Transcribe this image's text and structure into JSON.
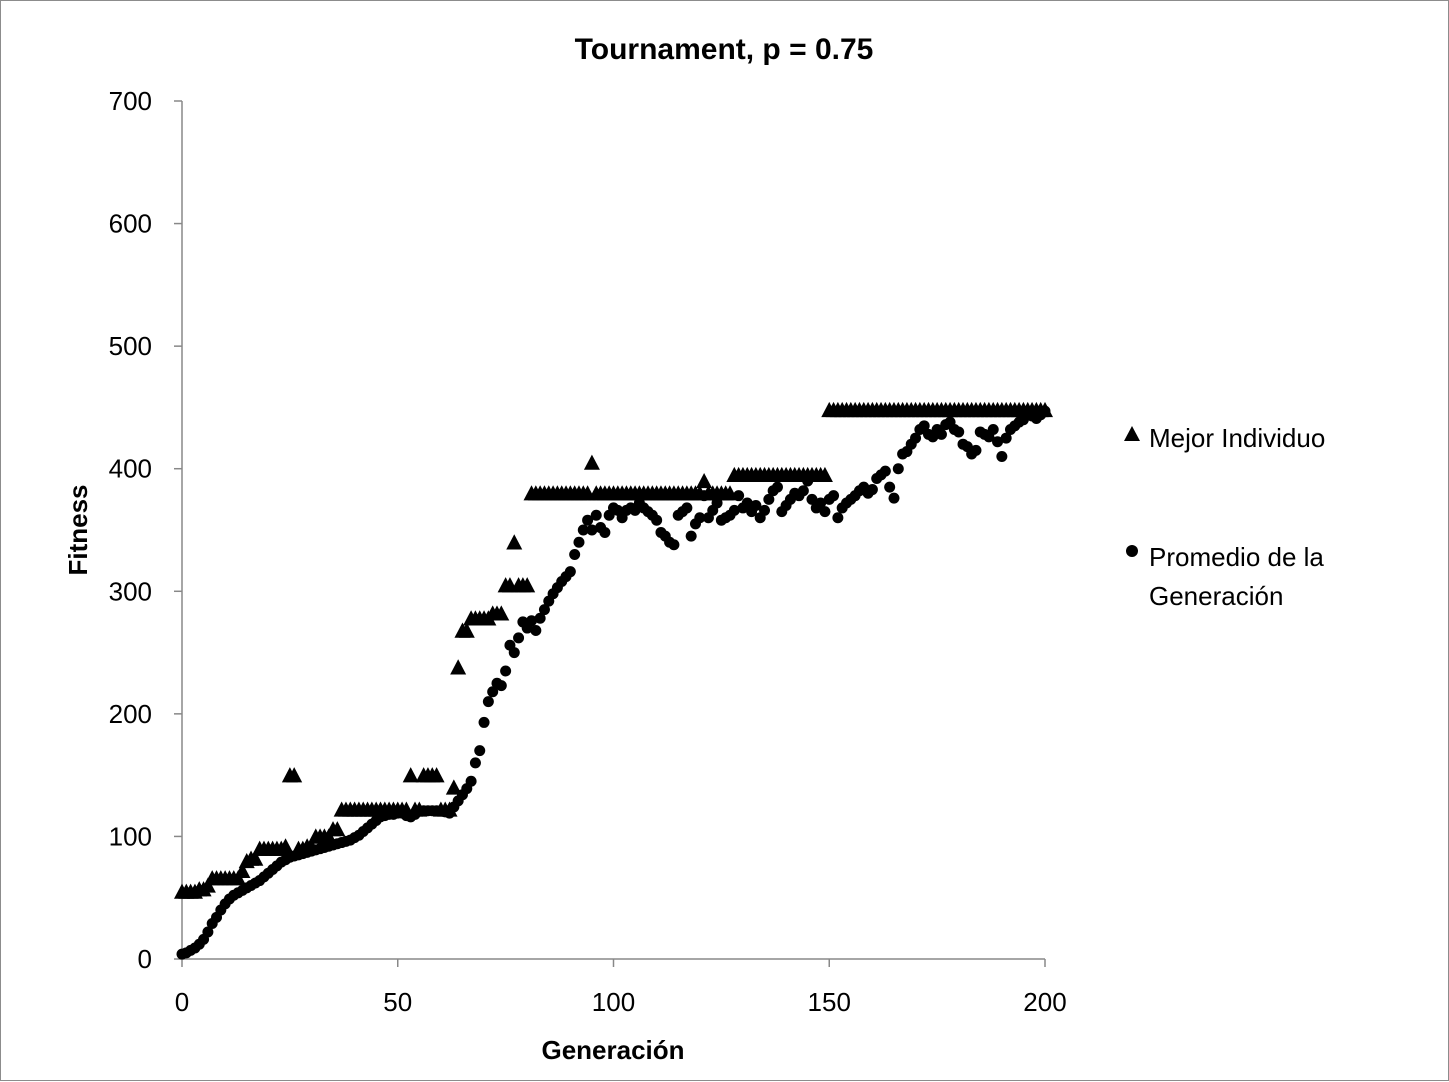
{
  "chart_data": {
    "type": "scatter",
    "title": "Tournament, p = 0.75",
    "xlabel": "Generación",
    "ylabel": "Fitness",
    "xlim": [
      0,
      200
    ],
    "ylim": [
      0,
      700
    ],
    "xticks": [
      0,
      50,
      100,
      150,
      200
    ],
    "yticks": [
      0,
      100,
      200,
      300,
      400,
      500,
      600,
      700
    ],
    "grid": false,
    "legend": "right",
    "series": [
      {
        "name": "Mejor Individuo",
        "marker": "triangle",
        "color": "#000000",
        "x": [
          0,
          1,
          2,
          3,
          4,
          5,
          6,
          7,
          8,
          9,
          10,
          11,
          12,
          13,
          14,
          15,
          16,
          17,
          18,
          19,
          20,
          21,
          22,
          23,
          24,
          25,
          26,
          27,
          28,
          29,
          30,
          31,
          32,
          33,
          34,
          35,
          36,
          37,
          38,
          39,
          40,
          41,
          42,
          43,
          44,
          45,
          46,
          47,
          48,
          49,
          50,
          51,
          52,
          53,
          54,
          55,
          56,
          57,
          58,
          59,
          60,
          61,
          62,
          63,
          64,
          65,
          66,
          67,
          68,
          69,
          70,
          71,
          72,
          73,
          74,
          75,
          76,
          77,
          78,
          79,
          80,
          81,
          82,
          83,
          84,
          85,
          86,
          87,
          88,
          89,
          90,
          91,
          92,
          93,
          94,
          95,
          96,
          97,
          98,
          99,
          100,
          101,
          102,
          103,
          104,
          105,
          106,
          107,
          108,
          109,
          110,
          111,
          112,
          113,
          114,
          115,
          116,
          117,
          118,
          119,
          120,
          121,
          122,
          123,
          124,
          125,
          126,
          127,
          128,
          129,
          130,
          131,
          132,
          133,
          134,
          135,
          136,
          137,
          138,
          139,
          140,
          141,
          142,
          143,
          144,
          145,
          146,
          147,
          148,
          149,
          150,
          151,
          152,
          153,
          154,
          155,
          156,
          157,
          158,
          159,
          160,
          161,
          162,
          163,
          164,
          165,
          166,
          167,
          168,
          169,
          170,
          171,
          172,
          173,
          174,
          175,
          176,
          177,
          178,
          179,
          180,
          181,
          182,
          183,
          184,
          185,
          186,
          187,
          188,
          189,
          190,
          191,
          192,
          193,
          194,
          195,
          196,
          197,
          198,
          199,
          200
        ],
        "y": [
          55,
          55,
          55,
          55,
          57,
          57,
          60,
          66,
          66,
          66,
          66,
          66,
          66,
          66,
          72,
          80,
          82,
          82,
          90,
          90,
          90,
          90,
          90,
          90,
          92,
          150,
          150,
          90,
          90,
          92,
          92,
          100,
          100,
          100,
          100,
          106,
          106,
          122,
          122,
          122,
          122,
          122,
          122,
          122,
          122,
          122,
          122,
          122,
          122,
          122,
          122,
          122,
          122,
          150,
          122,
          122,
          150,
          150,
          150,
          150,
          122,
          122,
          122,
          140,
          238,
          268,
          268,
          278,
          278,
          278,
          278,
          278,
          282,
          282,
          282,
          305,
          305,
          340,
          305,
          305,
          305,
          380,
          380,
          380,
          380,
          380,
          380,
          380,
          380,
          380,
          380,
          380,
          380,
          380,
          380,
          405,
          380,
          380,
          380,
          380,
          380,
          380,
          380,
          380,
          380,
          380,
          380,
          380,
          380,
          380,
          380,
          380,
          380,
          380,
          380,
          380,
          380,
          380,
          380,
          380,
          380,
          390,
          380,
          380,
          380,
          380,
          380,
          380,
          395,
          395,
          395,
          395,
          395,
          395,
          395,
          395,
          395,
          395,
          395,
          395,
          395,
          395,
          395,
          395,
          395,
          395,
          395,
          395,
          395,
          395,
          448,
          448,
          448,
          448,
          448,
          448,
          448,
          448,
          448,
          448,
          448,
          448,
          448,
          448,
          448,
          448,
          448,
          448,
          448,
          448,
          448,
          448,
          448,
          448,
          448,
          448,
          448,
          448,
          448,
          448,
          448,
          448,
          448,
          448,
          448,
          448,
          448,
          448,
          448,
          448,
          448,
          448,
          448,
          448,
          448,
          448,
          448,
          448,
          448,
          448,
          448
        ]
      },
      {
        "name": "Promedio de la Generación",
        "marker": "circle",
        "color": "#000000",
        "x": [
          0,
          1,
          2,
          3,
          4,
          5,
          6,
          7,
          8,
          9,
          10,
          11,
          12,
          13,
          14,
          15,
          16,
          17,
          18,
          19,
          20,
          21,
          22,
          23,
          24,
          25,
          26,
          27,
          28,
          29,
          30,
          31,
          32,
          33,
          34,
          35,
          36,
          37,
          38,
          39,
          40,
          41,
          42,
          43,
          44,
          45,
          46,
          47,
          48,
          49,
          50,
          51,
          52,
          53,
          54,
          55,
          56,
          57,
          58,
          59,
          60,
          61,
          62,
          63,
          64,
          65,
          66,
          67,
          68,
          69,
          70,
          71,
          72,
          73,
          74,
          75,
          76,
          77,
          78,
          79,
          80,
          81,
          82,
          83,
          84,
          85,
          86,
          87,
          88,
          89,
          90,
          91,
          92,
          93,
          94,
          95,
          96,
          97,
          98,
          99,
          100,
          101,
          102,
          103,
          104,
          105,
          106,
          107,
          108,
          109,
          110,
          111,
          112,
          113,
          114,
          115,
          116,
          117,
          118,
          119,
          120,
          121,
          122,
          123,
          124,
          125,
          126,
          127,
          128,
          129,
          130,
          131,
          132,
          133,
          134,
          135,
          136,
          137,
          138,
          139,
          140,
          141,
          142,
          143,
          144,
          145,
          146,
          147,
          148,
          149,
          150,
          151,
          152,
          153,
          154,
          155,
          156,
          157,
          158,
          159,
          160,
          161,
          162,
          163,
          164,
          165,
          166,
          167,
          168,
          169,
          170,
          171,
          172,
          173,
          174,
          175,
          176,
          177,
          178,
          179,
          180,
          181,
          182,
          183,
          184,
          185,
          186,
          187,
          188,
          189,
          190,
          191,
          192,
          193,
          194,
          195,
          196,
          197,
          198,
          199,
          200
        ],
        "y": [
          4,
          5,
          7,
          9,
          12,
          16,
          22,
          29,
          34,
          40,
          45,
          49,
          52,
          54,
          56,
          58,
          60,
          62,
          64,
          67,
          70,
          73,
          76,
          79,
          81,
          83,
          84,
          85,
          86,
          87,
          88,
          89,
          90,
          91,
          92,
          93,
          94,
          95,
          96,
          97,
          99,
          101,
          104,
          107,
          110,
          113,
          116,
          117,
          118,
          118,
          119,
          119,
          117,
          116,
          118,
          121,
          121,
          121,
          121,
          121,
          121,
          120,
          119,
          124,
          129,
          134,
          139,
          145,
          160,
          170,
          193,
          210,
          218,
          225,
          223,
          235,
          256,
          250,
          262,
          275,
          270,
          276,
          268,
          278,
          285,
          292,
          298,
          303,
          308,
          312,
          316,
          330,
          340,
          350,
          358,
          350,
          362,
          352,
          348,
          362,
          368,
          366,
          360,
          366,
          368,
          366,
          372,
          368,
          365,
          362,
          358,
          348,
          345,
          340,
          338,
          362,
          365,
          368,
          345,
          355,
          360,
          378,
          360,
          366,
          372,
          358,
          360,
          362,
          366,
          378,
          368,
          372,
          365,
          370,
          360,
          366,
          375,
          382,
          385,
          365,
          370,
          375,
          380,
          378,
          382,
          390,
          375,
          368,
          372,
          365,
          375,
          378,
          360,
          368,
          372,
          375,
          378,
          382,
          385,
          380,
          383,
          392,
          395,
          398,
          385,
          376,
          400,
          412,
          414,
          420,
          425,
          432,
          435,
          428,
          426,
          432,
          428,
          436,
          438,
          432,
          430,
          420,
          418,
          412,
          415,
          430,
          428,
          426,
          432,
          422,
          410,
          425,
          432,
          435,
          438,
          440,
          445,
          443,
          441,
          444,
          447
        ]
      }
    ]
  }
}
